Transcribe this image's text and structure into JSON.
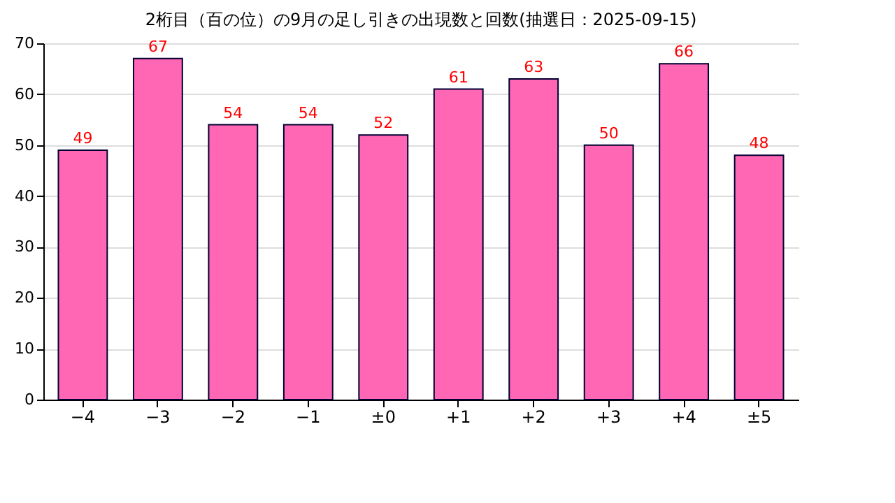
{
  "chart_data": {
    "type": "bar",
    "title": "2桁目（百の位）の9月の足し引きの出現数と回数(抽選日：2025-09-15)",
    "categories": [
      "−4",
      "−3",
      "−2",
      "−1",
      "±0",
      "+1",
      "+2",
      "+3",
      "+4",
      "±5"
    ],
    "values": [
      49,
      67,
      54,
      54,
      52,
      61,
      63,
      50,
      66,
      48
    ],
    "color": "#ff66b3",
    "ylim": [
      0,
      70
    ],
    "yticks": [
      0,
      10,
      20,
      30,
      40,
      50,
      60,
      70
    ],
    "grid": "y",
    "data_labels": true
  }
}
